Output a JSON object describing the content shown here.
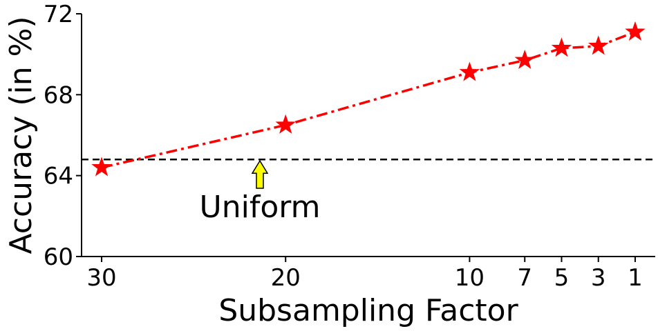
{
  "chart_data": {
    "type": "line",
    "x": [
      30,
      20,
      10,
      7,
      5,
      3,
      1
    ],
    "series": [
      {
        "name": "",
        "values": [
          64.4,
          66.5,
          69.1,
          69.7,
          70.3,
          70.4,
          71.1
        ],
        "color": "#ff0000",
        "marker": "star",
        "linestyle": "dash-dot"
      }
    ],
    "reference_line": {
      "y": 64.8,
      "label": "Uniform",
      "color": "#000000",
      "linestyle": "dashed"
    },
    "annotation_arrow_color": "#ffff00",
    "xlabel": "Subsampling Factor",
    "ylabel": "Accuracy (in %)",
    "xticks": [
      "30",
      "20",
      "10",
      "7",
      "5",
      "3",
      "1"
    ],
    "yticks": [
      60,
      64,
      68,
      72
    ],
    "ylim": [
      60,
      72
    ],
    "x_axis_reversed": true,
    "grid": false,
    "legend": "none"
  }
}
